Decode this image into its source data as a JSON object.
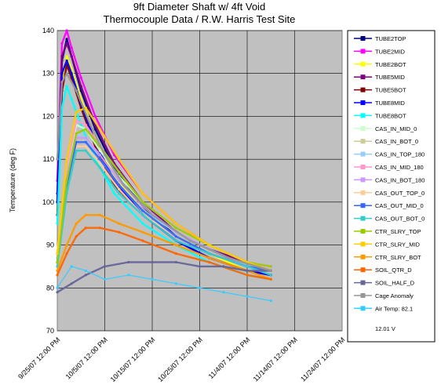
{
  "chart_data": {
    "type": "line",
    "title": "9ft Diameter Shaft w/ 4ft Void",
    "subtitle": "Thermocouple Data / R.W. Harris Test Site",
    "ylabel": "Temperature (deg F)",
    "xlabel": "",
    "ylim": [
      70,
      140
    ],
    "y_ticks": [
      70,
      80,
      90,
      100,
      110,
      120,
      130,
      140
    ],
    "x_ticks": [
      "9/25/07 12:00 PM",
      "10/5/07 12:00 PM",
      "10/15/07 12:00 PM",
      "10/25/07 12:00 PM",
      "11/4/07 12:00 PM",
      "11/14/07 12:00 PM",
      "11/24/07 12:00 PM"
    ],
    "xlim_days": [
      0,
      60
    ],
    "grid": true,
    "plot_background": "#c0c0c0",
    "legend_position": "right",
    "legend_footer": "12.01 V",
    "x_unit_note": "x values are days after 9/25/07 12:00 PM",
    "series": [
      {
        "name": "TUBE2TOP",
        "color": "#000080",
        "x": [
          0,
          1,
          2,
          3,
          5,
          8,
          12,
          18,
          25,
          32,
          40,
          45
        ],
        "values": [
          100,
          133,
          138,
          134,
          126,
          117,
          108,
          99,
          92,
          88,
          85,
          84
        ]
      },
      {
        "name": "TUBE2MID",
        "color": "#ff00ff",
        "x": [
          0,
          1,
          2,
          3,
          5,
          8,
          12,
          18,
          25,
          32,
          40,
          45
        ],
        "values": [
          105,
          137,
          140,
          136,
          129,
          120,
          111,
          102,
          95,
          90,
          86,
          85
        ]
      },
      {
        "name": "TUBE2BOT",
        "color": "#ffff00",
        "x": [
          0,
          1,
          2,
          3,
          5,
          8,
          12,
          18,
          25,
          32,
          40,
          45
        ],
        "values": [
          98,
          128,
          134,
          131,
          124,
          115,
          106,
          98,
          92,
          88,
          84,
          83
        ]
      },
      {
        "name": "TUBE5MID",
        "color": "#800080",
        "x": [
          0,
          1,
          2,
          3,
          5,
          8,
          12,
          18,
          25,
          32,
          40,
          45
        ],
        "values": [
          102,
          134,
          137,
          134,
          127,
          118,
          109,
          100,
          93,
          89,
          86,
          84
        ]
      },
      {
        "name": "TUBE5BOT",
        "color": "#800000",
        "x": [
          0,
          1,
          2,
          3,
          5,
          8,
          12,
          18,
          25,
          32,
          40,
          45
        ],
        "values": [
          97,
          126,
          132,
          129,
          122,
          113,
          104,
          97,
          91,
          87,
          84,
          83
        ]
      },
      {
        "name": "TUBE8MID",
        "color": "#0000ff",
        "x": [
          0,
          1,
          2,
          3,
          5,
          8,
          12,
          18,
          25,
          32,
          40,
          45
        ],
        "values": [
          100,
          130,
          133,
          130,
          123,
          114,
          105,
          97,
          91,
          87,
          84,
          83
        ]
      },
      {
        "name": "TUBE8BOT",
        "color": "#00ffff",
        "x": [
          0,
          1,
          2,
          3,
          5,
          8,
          12,
          18,
          25,
          32,
          40,
          45
        ],
        "values": [
          95,
          122,
          127,
          124,
          118,
          110,
          102,
          95,
          90,
          86,
          83,
          82
        ]
      },
      {
        "name": "CAS_IN_MID_0",
        "color": "#ccffcc",
        "x": [
          0,
          2,
          4,
          6,
          9,
          13,
          18,
          25,
          32,
          40,
          45
        ],
        "values": [
          88,
          108,
          118,
          117,
          112,
          106,
          100,
          94,
          90,
          86,
          85
        ]
      },
      {
        "name": "CAS_IN_BOT_0",
        "color": "#cccc99",
        "x": [
          0,
          2,
          4,
          6,
          9,
          13,
          18,
          25,
          32,
          40,
          45
        ],
        "values": [
          86,
          104,
          114,
          114,
          110,
          104,
          98,
          93,
          89,
          85,
          84
        ]
      },
      {
        "name": "CAS_IN_TOP_180",
        "color": "#99ccff",
        "x": [
          0,
          2,
          4,
          6,
          9,
          13,
          18,
          25,
          32,
          40,
          45
        ],
        "values": [
          87,
          106,
          116,
          115,
          110,
          104,
          98,
          93,
          89,
          85,
          84
        ]
      },
      {
        "name": "CAS_IN_MID_180",
        "color": "#ff99cc",
        "x": [
          0,
          2,
          4,
          6,
          9,
          13,
          18,
          25,
          32,
          40,
          45
        ],
        "values": [
          88,
          108,
          119,
          118,
          113,
          107,
          100,
          94,
          90,
          86,
          85
        ]
      },
      {
        "name": "CAS_IN_BOT_180",
        "color": "#cc99ff",
        "x": [
          0,
          2,
          4,
          6,
          9,
          13,
          18,
          25,
          32,
          40,
          45
        ],
        "values": [
          86,
          105,
          115,
          115,
          111,
          105,
          99,
          93,
          89,
          85,
          84
        ]
      },
      {
        "name": "CAS_OUT_TOP_0",
        "color": "#ffcc99",
        "x": [
          0,
          2,
          4,
          6,
          9,
          13,
          18,
          25,
          32,
          40,
          45
        ],
        "values": [
          85,
          103,
          113,
          113,
          109,
          103,
          97,
          92,
          88,
          85,
          84
        ]
      },
      {
        "name": "CAS_OUT_MID_0",
        "color": "#3366ff",
        "x": [
          0,
          2,
          4,
          6,
          9,
          13,
          18,
          25,
          32,
          40,
          45
        ],
        "values": [
          86,
          104,
          114,
          114,
          110,
          104,
          98,
          92,
          88,
          85,
          84
        ]
      },
      {
        "name": "CAS_OUT_BOT_0",
        "color": "#33cccc",
        "x": [
          0,
          2,
          4,
          6,
          9,
          13,
          18,
          25,
          32,
          40,
          45
        ],
        "values": [
          85,
          102,
          112,
          112,
          108,
          102,
          97,
          91,
          88,
          85,
          83
        ]
      },
      {
        "name": "CTR_SLRY_TOP",
        "color": "#99cc00",
        "x": [
          0,
          2,
          4,
          6,
          9,
          13,
          18,
          25,
          32,
          40,
          45
        ],
        "values": [
          86,
          105,
          116,
          117,
          113,
          107,
          100,
          94,
          90,
          86,
          85
        ]
      },
      {
        "name": "CTR_SLRY_MID",
        "color": "#ffcc00",
        "x": [
          0,
          2,
          4,
          6,
          9,
          13,
          18,
          25,
          32,
          40,
          45
        ],
        "values": [
          88,
          110,
          121,
          122,
          117,
          110,
          102,
          95,
          90,
          86,
          84
        ]
      },
      {
        "name": "CTR_SLRY_BOT",
        "color": "#ff9900",
        "x": [
          0,
          2,
          4,
          6,
          9,
          13,
          18,
          25,
          32,
          40,
          45
        ],
        "values": [
          84,
          90,
          95,
          97,
          97,
          95,
          93,
          90,
          87,
          84,
          82
        ]
      },
      {
        "name": "SOIL_QTR_D",
        "color": "#ff6600",
        "x": [
          0,
          2,
          4,
          6,
          9,
          13,
          18,
          25,
          32,
          40,
          45
        ],
        "values": [
          83,
          88,
          92,
          94,
          94,
          93,
          91,
          88,
          86,
          83,
          82
        ]
      },
      {
        "name": "SOIL_HALF_D",
        "color": "#666699",
        "x": [
          0,
          3,
          6,
          10,
          15,
          20,
          25,
          30,
          35,
          40,
          45
        ],
        "values": [
          79,
          81,
          83,
          85,
          86,
          86,
          86,
          85,
          85,
          84,
          84
        ]
      },
      {
        "name": "Cage Anomaly",
        "color": "#969696",
        "x": [
          0,
          1,
          2,
          4,
          7,
          10,
          14,
          20,
          28,
          36,
          45
        ],
        "values": [
          110,
          128,
          130,
          126,
          118,
          111,
          104,
          97,
          91,
          87,
          84
        ]
      },
      {
        "name": "Air Temp: 82.1",
        "color": "#33ccff",
        "x": [
          0,
          3,
          6,
          10,
          15,
          20,
          25,
          30,
          35,
          40,
          45
        ],
        "values": [
          80,
          85,
          84,
          82,
          83,
          82,
          81,
          80,
          79,
          78,
          77
        ]
      }
    ]
  }
}
